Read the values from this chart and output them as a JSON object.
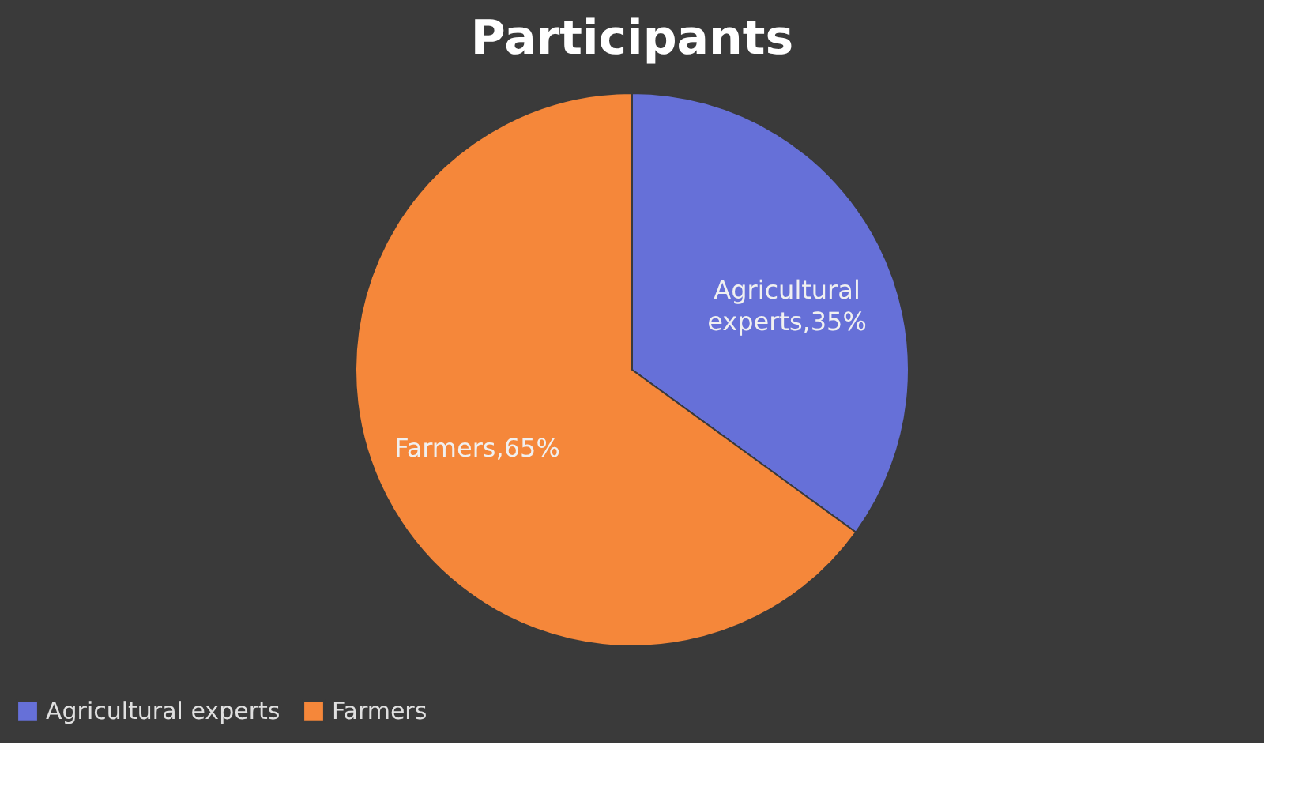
{
  "chart_data": {
    "type": "pie",
    "title": "Participants",
    "categories": [
      "Agricultural experts",
      "Farmers"
    ],
    "values": [
      35,
      65
    ],
    "colors": [
      "#6670d8",
      "#f5873a"
    ],
    "value_labels": [
      "Agricultural experts,35%",
      "Farmers,65%"
    ],
    "legend": "bottom"
  }
}
